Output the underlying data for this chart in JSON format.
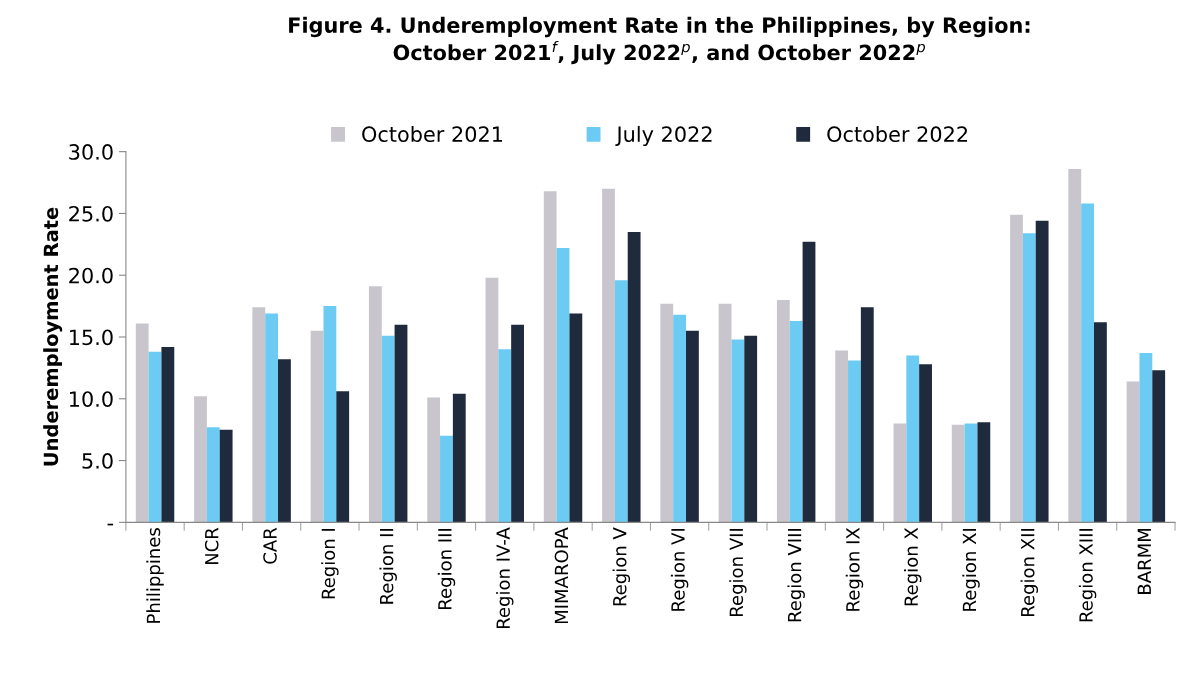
{
  "chart_data": {
    "type": "bar",
    "title": "Figure 4. Underemployment Rate in the Philippines, by Region:\nOctober 2021$^{f}$, July 2022$^{p}$, and October 2022$^{p}$",
    "ylabel": "Underemployment Rate",
    "categories": [
      "Philippines",
      "NCR",
      "CAR",
      "Region I",
      "Region II",
      "Region III",
      "Region IV-A",
      "MIMAROPA",
      "Region V",
      "Region VI",
      "Region VII",
      "Region VIII",
      "Region IX",
      "Region X",
      "Region XI",
      "Region XII",
      "Region XIII",
      "BARMM"
    ],
    "series": [
      {
        "name": "October 2021",
        "color": "#c8c6cc",
        "values": [
          16.1,
          10.2,
          17.4,
          15.5,
          19.1,
          10.1,
          19.8,
          26.8,
          27.0,
          17.7,
          17.7,
          18.0,
          13.9,
          8.0,
          7.9,
          24.9,
          28.6,
          11.4
        ]
      },
      {
        "name": "July 2022",
        "color": "#6ccbf3",
        "values": [
          13.8,
          7.7,
          16.9,
          17.5,
          15.1,
          7.0,
          14.0,
          22.2,
          19.6,
          16.8,
          14.8,
          16.3,
          13.1,
          13.5,
          8.0,
          23.4,
          25.8,
          13.7
        ]
      },
      {
        "name": "October 2022",
        "color": "#1f2a3c",
        "values": [
          14.2,
          7.5,
          13.2,
          10.6,
          16.0,
          10.4,
          16.0,
          16.9,
          23.5,
          15.5,
          15.1,
          22.7,
          17.4,
          12.8,
          8.1,
          24.4,
          16.2,
          12.3
        ]
      }
    ],
    "ylim": [
      0,
      30
    ],
    "yticks": [
      {
        "value": 0,
        "label": "-"
      },
      {
        "value": 5,
        "label": "5.0"
      },
      {
        "value": 10,
        "label": "10.0"
      },
      {
        "value": 15,
        "label": "15.0"
      },
      {
        "value": 20,
        "label": "20.0"
      },
      {
        "value": 25,
        "label": "25.0"
      },
      {
        "value": 30,
        "label": "30.0"
      }
    ],
    "grid": false,
    "legend": "top"
  }
}
